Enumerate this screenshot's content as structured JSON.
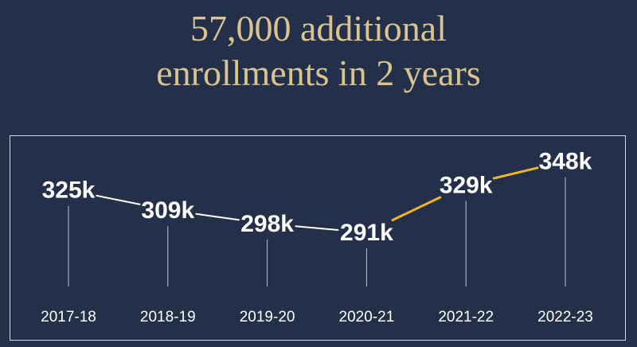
{
  "title": {
    "line1": "57,000 additional",
    "line2": "enrollments in 2 years"
  },
  "colors": {
    "background": "#24304a",
    "title": "#d9c48f",
    "line_before": "#ffffff",
    "line_after": "#f0b429",
    "drop_lines": "#b9c2d2"
  },
  "chart_data": {
    "type": "line",
    "title": "57,000 additional enrollments in 2 years",
    "xlabel": "",
    "ylabel": "",
    "categories": [
      "2017-18",
      "2018-19",
      "2019-20",
      "2020-21",
      "2021-22",
      "2022-23"
    ],
    "values": [
      325,
      309,
      298,
      291,
      329,
      348
    ],
    "labels": [
      "325k",
      "309k",
      "298k",
      "291k",
      "329k",
      "348k"
    ],
    "highlight_from_index": 3,
    "ylim": [
      230,
      370
    ],
    "grid": false,
    "legend": "none"
  }
}
